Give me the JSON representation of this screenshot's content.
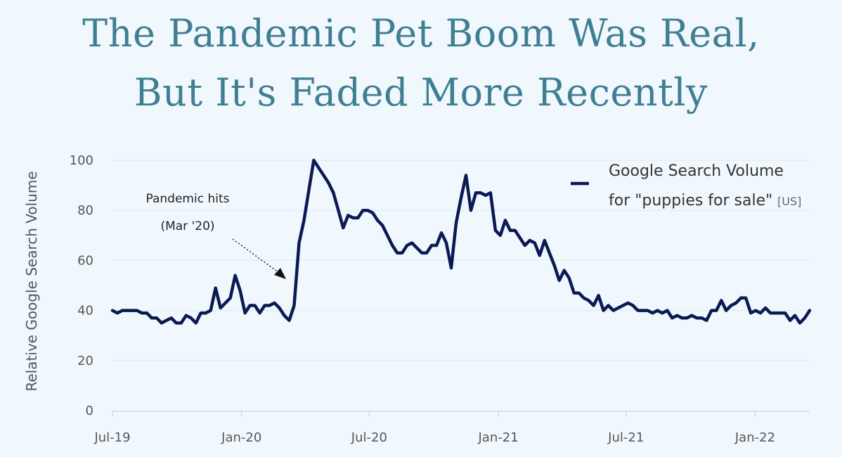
{
  "title": {
    "line1": "The Pandemic Pet Boom Was Real,",
    "line2": "But It's Faded More Recently"
  },
  "colors": {
    "background": "#f1f8fd",
    "title": "#3f7f93",
    "series": "#0b1a54",
    "grid": "#dde8ef"
  },
  "chart_data": {
    "type": "line",
    "title": "The Pandemic Pet Boom Was Real, But It's Faded More Recently",
    "xlabel": "",
    "ylabel": "Relative Google Search Volume",
    "ylim": [
      0,
      100
    ],
    "y_ticks": [
      "0",
      "20",
      "40",
      "60",
      "80",
      "100"
    ],
    "x_ticks": [
      "Jul-19",
      "Jan-20",
      "Jul-20",
      "Jan-21",
      "Jul-21",
      "Jan-22"
    ],
    "x_unit": "weeks since Jul 1, 2019",
    "x_tick_weeks": [
      0,
      26.3,
      52.3,
      78.6,
      104.6,
      130.9
    ],
    "grid": true,
    "legend": {
      "position": "top-right",
      "label_line1": "Google Search Volume",
      "label_line2": "for \"puppies for sale\"",
      "note": "[US]"
    },
    "annotation": {
      "line1": "Pandemic hits",
      "line2": "(Mar '20)",
      "target_week": 35,
      "target_value": 54
    },
    "series": [
      {
        "name": "Google Search Volume for \"puppies for sale\" [US]",
        "x": [
          0,
          1,
          2,
          3,
          4,
          5,
          6,
          7,
          8,
          9,
          10,
          11,
          12,
          13,
          14,
          15,
          16,
          17,
          18,
          19,
          20,
          21,
          22,
          23,
          24,
          25,
          26,
          27,
          28,
          29,
          30,
          31,
          32,
          33,
          34,
          35,
          36,
          37,
          38,
          39,
          40,
          41,
          42,
          43,
          44,
          45,
          46,
          47,
          48,
          49,
          50,
          51,
          52,
          53,
          54,
          55,
          56,
          57,
          58,
          59,
          60,
          61,
          62,
          63,
          64,
          65,
          66,
          67,
          68,
          69,
          70,
          71,
          72,
          73,
          74,
          75,
          76,
          77,
          78,
          79,
          80,
          81,
          82,
          83,
          84,
          85,
          86,
          87,
          88,
          89,
          90,
          91,
          92,
          93,
          94,
          95,
          96,
          97,
          98,
          99,
          100,
          101,
          102,
          103,
          104,
          105,
          106,
          107,
          108,
          109,
          110,
          111,
          112,
          113,
          114,
          115,
          116,
          117,
          118,
          119,
          120,
          121,
          122,
          123,
          124,
          125,
          126,
          127,
          128,
          129,
          130,
          131,
          132,
          133,
          134,
          135,
          136,
          137,
          138,
          139,
          140,
          141,
          142
        ],
        "values": [
          40,
          39,
          40,
          40,
          40,
          40,
          39,
          39,
          37,
          37,
          35,
          36,
          37,
          35,
          35,
          38,
          37,
          35,
          39,
          39,
          40,
          49,
          41,
          43,
          45,
          54,
          48,
          39,
          42,
          42,
          39,
          42,
          42,
          43,
          41,
          38,
          36,
          42,
          67,
          76,
          88,
          100,
          97,
          94,
          91,
          87,
          80,
          73,
          78,
          77,
          77,
          80,
          80,
          79,
          76,
          74,
          70,
          66,
          63,
          63,
          66,
          67,
          65,
          63,
          63,
          66,
          66,
          71,
          67,
          57,
          75,
          85,
          94,
          80,
          87,
          87,
          86,
          87,
          72,
          70,
          76,
          72,
          72,
          69,
          66,
          68,
          67,
          62,
          68,
          63,
          58,
          52,
          56,
          53,
          47,
          47,
          45,
          44,
          42,
          46,
          40,
          42,
          40,
          41,
          42,
          43,
          42,
          40,
          40,
          40,
          39,
          40,
          39,
          40,
          37,
          38,
          37,
          37,
          38,
          37,
          37,
          36,
          40,
          40,
          44,
          40,
          42,
          43,
          45,
          45,
          39,
          40,
          39,
          41,
          39,
          39,
          39,
          39,
          36,
          38,
          35,
          37,
          40
        ]
      }
    ]
  }
}
